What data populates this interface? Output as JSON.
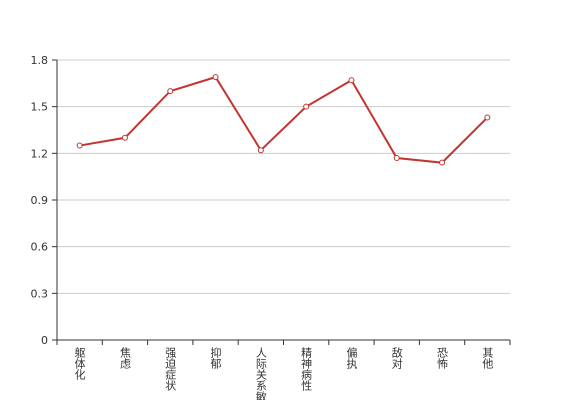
{
  "chart_data": {
    "type": "line",
    "categories": [
      "躯体化",
      "焦虑",
      "强迫症状",
      "抑郁",
      "人际关系敏感",
      "精神病性",
      "偏执",
      "敌对",
      "恐怖",
      "其他"
    ],
    "values": [
      1.25,
      1.3,
      1.6,
      1.69,
      1.22,
      1.5,
      1.67,
      1.17,
      1.14,
      1.43
    ],
    "color": "#c23531",
    "ylim": [
      0,
      1.8
    ],
    "yticks": [
      0,
      0.3,
      0.6,
      0.9,
      1.2,
      1.5,
      1.8
    ],
    "grid": true
  }
}
